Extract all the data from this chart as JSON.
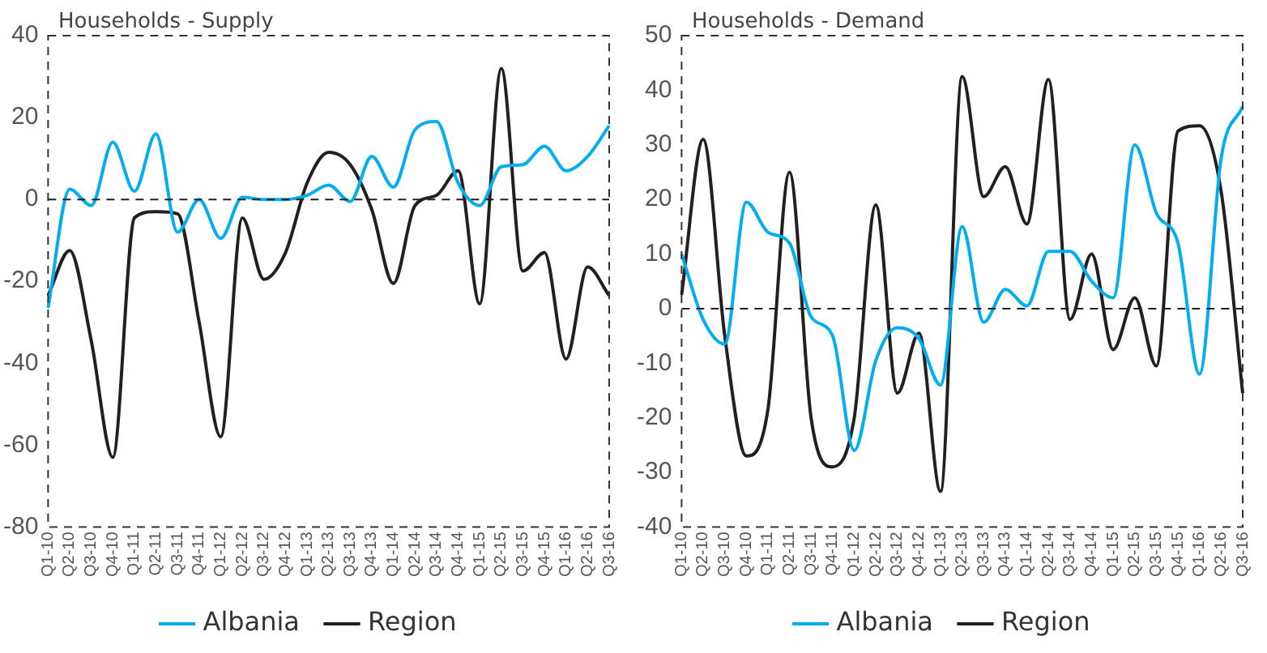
{
  "chart_data": [
    {
      "type": "line",
      "title": "Households - Supply",
      "categories": [
        "Q1-10",
        "Q2-10",
        "Q3-10",
        "Q4-10",
        "Q1-11",
        "Q2-11",
        "Q3-11",
        "Q4-11",
        "Q1-12",
        "Q2-12",
        "Q3-12",
        "Q4-12",
        "Q1-13",
        "Q2-13",
        "Q3-13",
        "Q4-13",
        "Q1-14",
        "Q2-14",
        "Q3-14",
        "Q4-14",
        "Q1-15",
        "Q2-15",
        "Q3-15",
        "Q4-15",
        "Q1-16",
        "Q2-16",
        "Q3-16"
      ],
      "series": [
        {
          "name": "Albania",
          "color": "#00aeef",
          "values": [
            -26.5,
            2.5,
            -1.5,
            14,
            2,
            16,
            -8,
            0,
            -9.5,
            0.5,
            0,
            0,
            1,
            3.5,
            -0.5,
            10.5,
            3,
            17,
            19,
            4,
            -1.5,
            8,
            8.5,
            13,
            7,
            10.5,
            18
          ]
        },
        {
          "name": "Region",
          "color": "#231f20",
          "values": [
            -23.5,
            -12.5,
            -34.5,
            -63,
            -4.5,
            -3,
            -3.5,
            -30,
            -58,
            -4.5,
            -19.5,
            -13,
            4,
            11.5,
            8.5,
            -2.5,
            -20.5,
            -1.5,
            1,
            7,
            -25.5,
            32,
            -17.5,
            -13,
            -39,
            -16.5,
            -23.5
          ]
        }
      ],
      "ylim": [
        -80,
        40
      ],
      "yticks": [
        -80,
        -60,
        -40,
        -20,
        0,
        20,
        40
      ],
      "grid": false,
      "legend": "bottom",
      "marker": "none",
      "line_style": "solid",
      "ref_lines": [
        {
          "axis": "y",
          "value": 0,
          "line_style": "dashed",
          "color": "#231f20"
        }
      ]
    },
    {
      "type": "line",
      "title": "Households - Demand",
      "categories": [
        "Q1-10",
        "Q2-10",
        "Q3-10",
        "Q4-10",
        "Q1-11",
        "Q2-11",
        "Q3-11",
        "Q4-11",
        "Q1-12",
        "Q2-12",
        "Q3-12",
        "Q4-12",
        "Q1-13",
        "Q2-13",
        "Q3-13",
        "Q4-13",
        "Q1-14",
        "Q2-14",
        "Q3-14",
        "Q4-14",
        "Q1-15",
        "Q2-15",
        "Q3-15",
        "Q4-15",
        "Q1-16",
        "Q2-16",
        "Q3-16"
      ],
      "series": [
        {
          "name": "Albania",
          "color": "#00aeef",
          "values": [
            10,
            -2,
            -6.5,
            19.5,
            14,
            12,
            -1.5,
            -5,
            -26,
            -9.5,
            -3.5,
            -5.5,
            -14,
            15,
            -2.5,
            3.5,
            0.5,
            10.5,
            10.5,
            5,
            2,
            30,
            17.5,
            12,
            -12,
            27.5,
            37
          ]
        },
        {
          "name": "Region",
          "color": "#231f20",
          "values": [
            2.5,
            31,
            -5,
            -27,
            -18.5,
            25,
            -20,
            -29,
            -20,
            19,
            -15.5,
            -4.5,
            -33.5,
            42.5,
            20.5,
            26,
            15.5,
            42,
            -2,
            10,
            -7.5,
            2,
            -10.5,
            32.5,
            33.5,
            21.5,
            -15.5
          ]
        }
      ],
      "ylim": [
        -40,
        50
      ],
      "yticks": [
        -40,
        -30,
        -20,
        -10,
        0,
        10,
        20,
        30,
        40,
        50
      ],
      "grid": false,
      "legend": "bottom",
      "marker": "none",
      "line_style": "solid",
      "ref_lines": [
        {
          "axis": "y",
          "value": 0,
          "line_style": "dashed",
          "color": "#231f20"
        }
      ]
    }
  ]
}
